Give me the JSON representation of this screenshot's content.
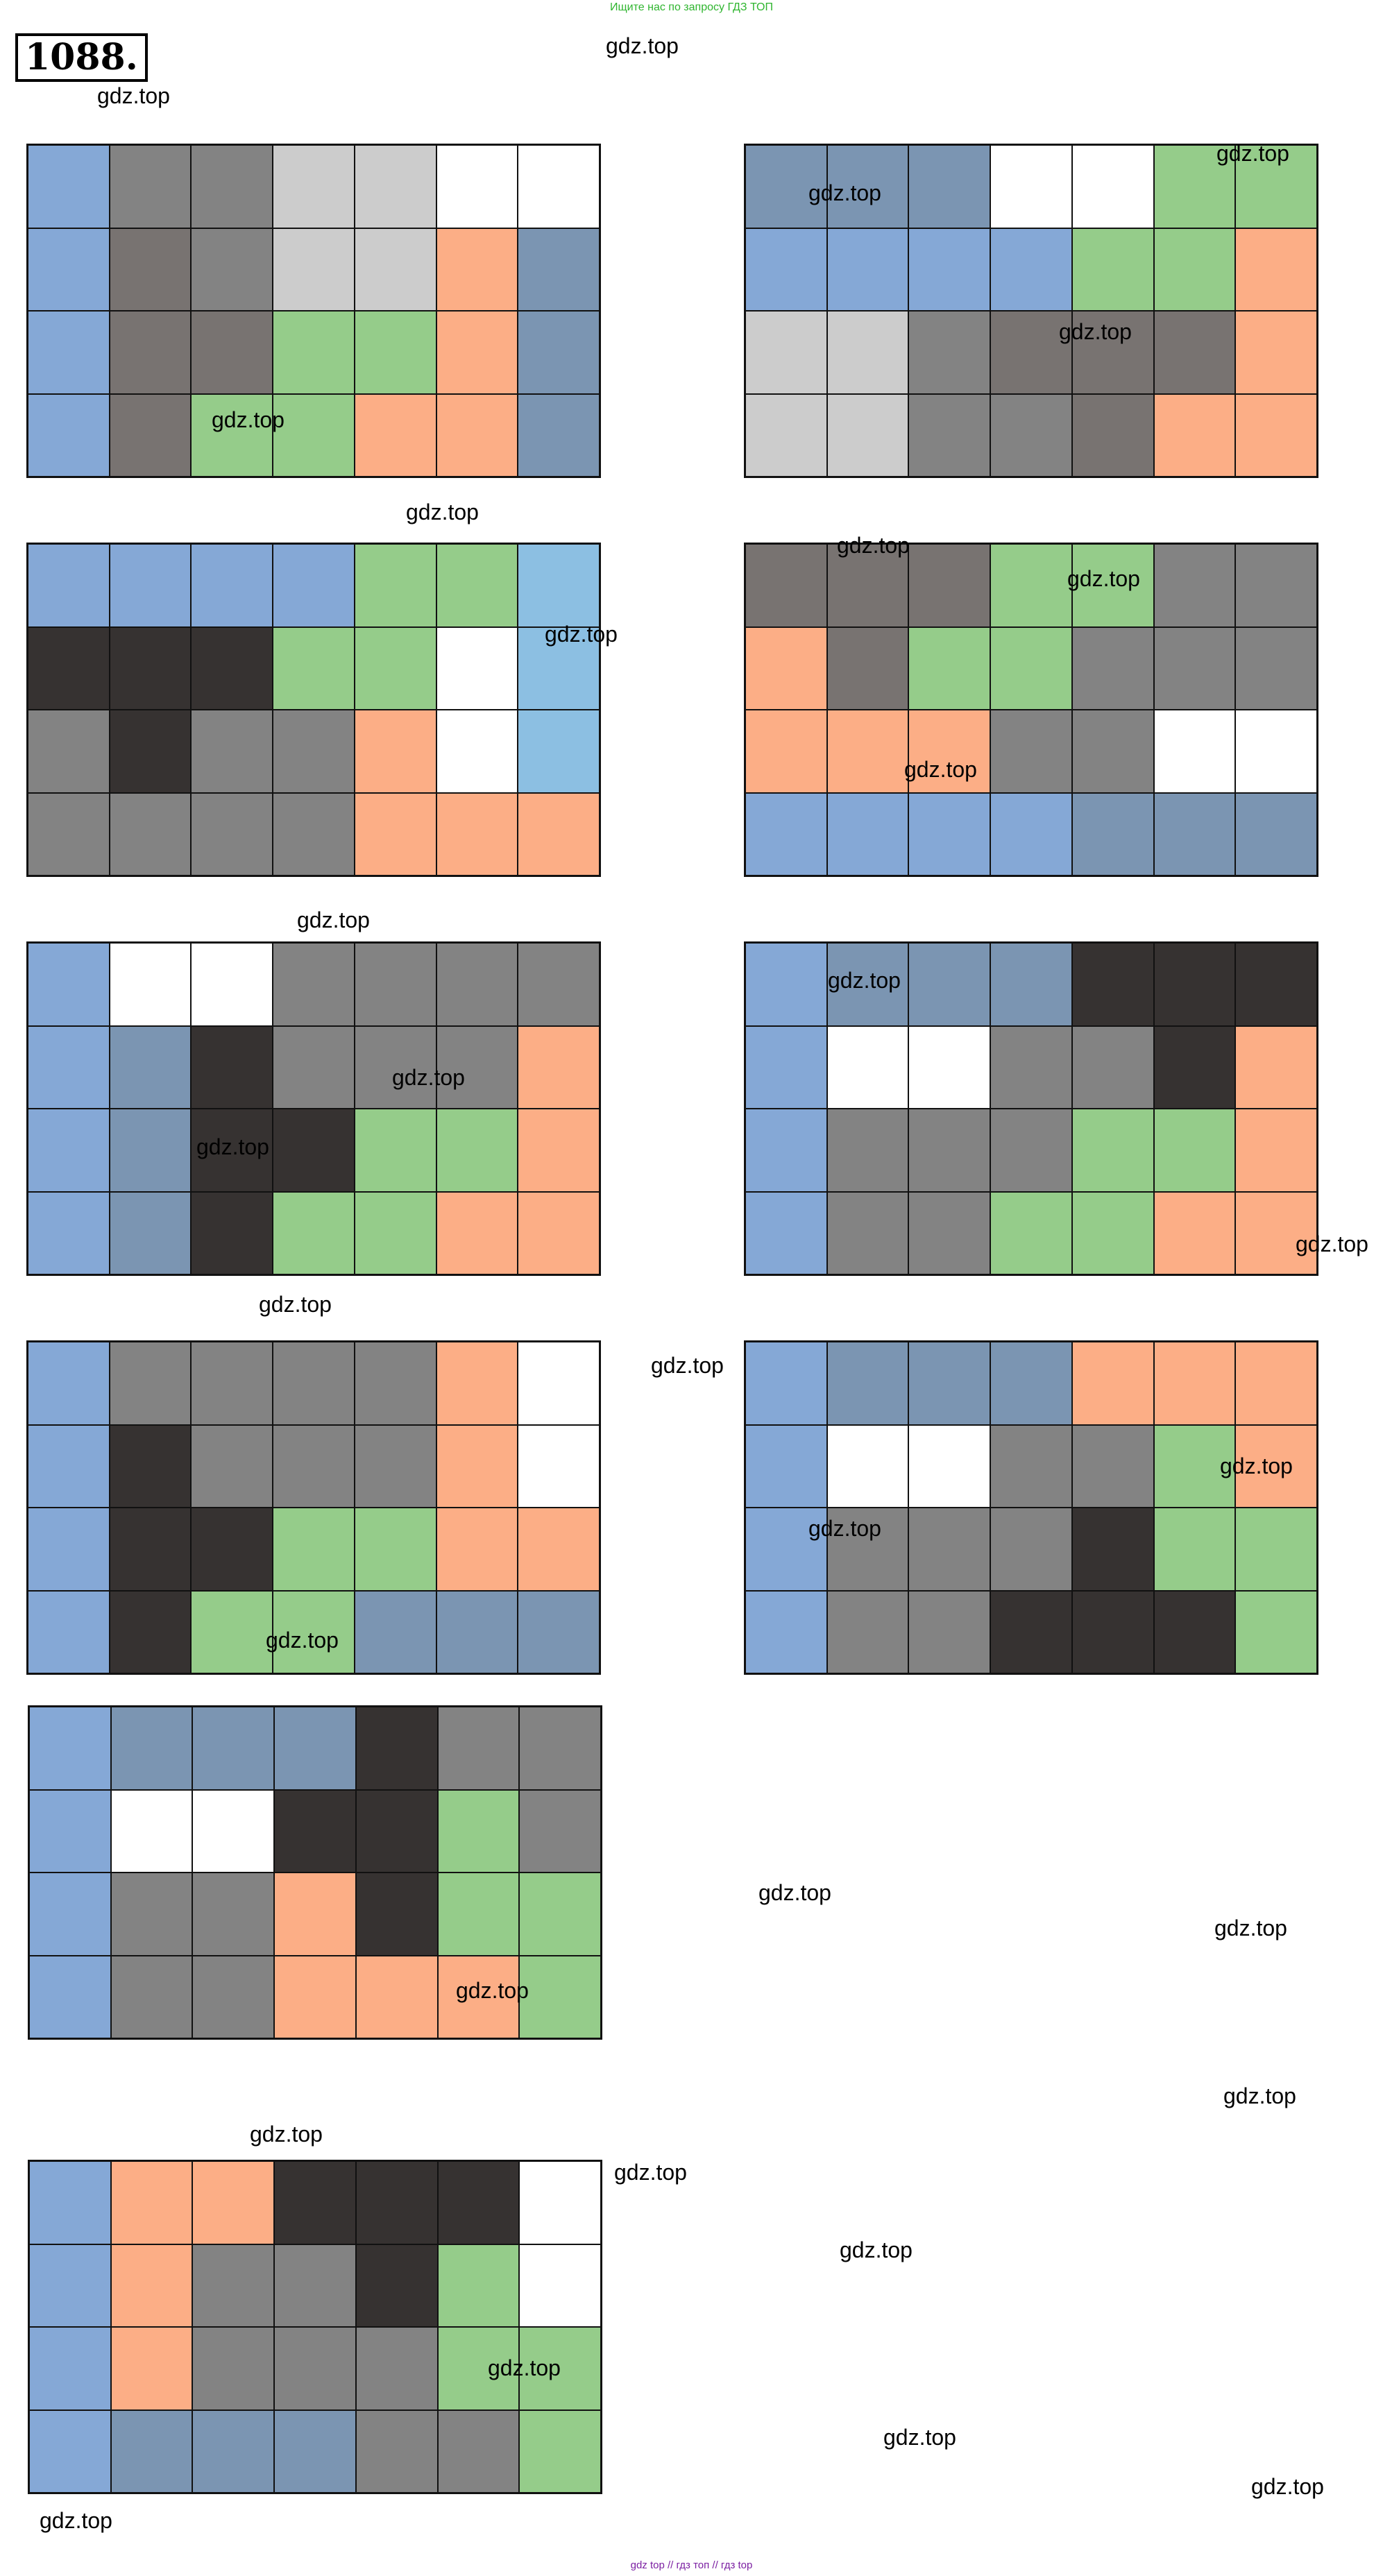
{
  "header": {
    "banner_text": "Ищите нас по запросу ГДЗ ТОП",
    "task_number": "1088."
  },
  "watermark_text": "gdz.top",
  "footer_text": "gdz top  //  гдз топ  //  гдз top",
  "colors": {
    "B": "#85a8d6",
    "S": "#7b95b2",
    "L": "#8cbfe2",
    "G": "#838383",
    "D": "#787371",
    "W2": "#cccccc",
    "K": "#363231",
    "N": "#95cc8a",
    "O": "#fcae86",
    "W": "#ffffff"
  },
  "grids": [
    {
      "rows": [
        [
          "B",
          "G",
          "G",
          "W2",
          "W2",
          "W",
          "W"
        ],
        [
          "B",
          "D",
          "G",
          "W2",
          "W2",
          "O",
          "S"
        ],
        [
          "B",
          "D",
          "D",
          "N",
          "N",
          "O",
          "S"
        ],
        [
          "B",
          "D",
          "N",
          "N",
          "O",
          "O",
          "S"
        ]
      ]
    },
    {
      "rows": [
        [
          "S",
          "S",
          "S",
          "W",
          "W",
          "N",
          "N"
        ],
        [
          "B",
          "B",
          "B",
          "B",
          "N",
          "N",
          "O"
        ],
        [
          "W2",
          "W2",
          "G",
          "D",
          "D",
          "D",
          "O"
        ],
        [
          "W2",
          "W2",
          "G",
          "G",
          "D",
          "O",
          "O"
        ]
      ]
    },
    {
      "rows": [
        [
          "B",
          "B",
          "B",
          "B",
          "N",
          "N",
          "L"
        ],
        [
          "K",
          "K",
          "K",
          "N",
          "N",
          "W",
          "L"
        ],
        [
          "G",
          "K",
          "G",
          "G",
          "O",
          "W",
          "L"
        ],
        [
          "G",
          "G",
          "G",
          "G",
          "O",
          "O",
          "O"
        ]
      ]
    },
    {
      "rows": [
        [
          "D",
          "D",
          "D",
          "N",
          "N",
          "G",
          "G"
        ],
        [
          "O",
          "D",
          "N",
          "N",
          "G",
          "G",
          "G"
        ],
        [
          "O",
          "O",
          "O",
          "G",
          "G",
          "W",
          "W"
        ],
        [
          "B",
          "B",
          "B",
          "B",
          "S",
          "S",
          "S"
        ]
      ]
    },
    {
      "rows": [
        [
          "B",
          "W",
          "W",
          "G",
          "G",
          "G",
          "G"
        ],
        [
          "B",
          "S",
          "K",
          "G",
          "G",
          "G",
          "O"
        ],
        [
          "B",
          "S",
          "K",
          "K",
          "N",
          "N",
          "O"
        ],
        [
          "B",
          "S",
          "K",
          "N",
          "N",
          "O",
          "O"
        ]
      ]
    },
    {
      "rows": [
        [
          "B",
          "S",
          "S",
          "S",
          "K",
          "K",
          "K"
        ],
        [
          "B",
          "W",
          "W",
          "G",
          "G",
          "K",
          "O"
        ],
        [
          "B",
          "G",
          "G",
          "G",
          "N",
          "N",
          "O"
        ],
        [
          "B",
          "G",
          "G",
          "N",
          "N",
          "O",
          "O"
        ]
      ]
    },
    {
      "rows": [
        [
          "B",
          "G",
          "G",
          "G",
          "G",
          "O",
          "W"
        ],
        [
          "B",
          "K",
          "G",
          "G",
          "G",
          "O",
          "W"
        ],
        [
          "B",
          "K",
          "K",
          "N",
          "N",
          "O",
          "O"
        ],
        [
          "B",
          "K",
          "N",
          "N",
          "S",
          "S",
          "S"
        ]
      ]
    },
    {
      "rows": [
        [
          "B",
          "S",
          "S",
          "S",
          "O",
          "O",
          "O"
        ],
        [
          "B",
          "W",
          "W",
          "G",
          "G",
          "N",
          "O"
        ],
        [
          "B",
          "G",
          "G",
          "G",
          "K",
          "N",
          "N"
        ],
        [
          "B",
          "G",
          "G",
          "K",
          "K",
          "K",
          "N"
        ]
      ]
    },
    {
      "rows": [
        [
          "B",
          "S",
          "S",
          "S",
          "K",
          "G",
          "G"
        ],
        [
          "B",
          "W",
          "W",
          "K",
          "K",
          "N",
          "G"
        ],
        [
          "B",
          "G",
          "G",
          "O",
          "K",
          "N",
          "N"
        ],
        [
          "B",
          "G",
          "G",
          "O",
          "O",
          "O",
          "N"
        ]
      ]
    },
    {
      "rows": [
        [
          "B",
          "O",
          "O",
          "K",
          "K",
          "K",
          "W"
        ],
        [
          "B",
          "O",
          "G",
          "G",
          "K",
          "N",
          "W"
        ],
        [
          "B",
          "O",
          "G",
          "G",
          "G",
          "N",
          "N"
        ],
        [
          "B",
          "S",
          "S",
          "S",
          "G",
          "G",
          "N"
        ]
      ]
    }
  ]
}
